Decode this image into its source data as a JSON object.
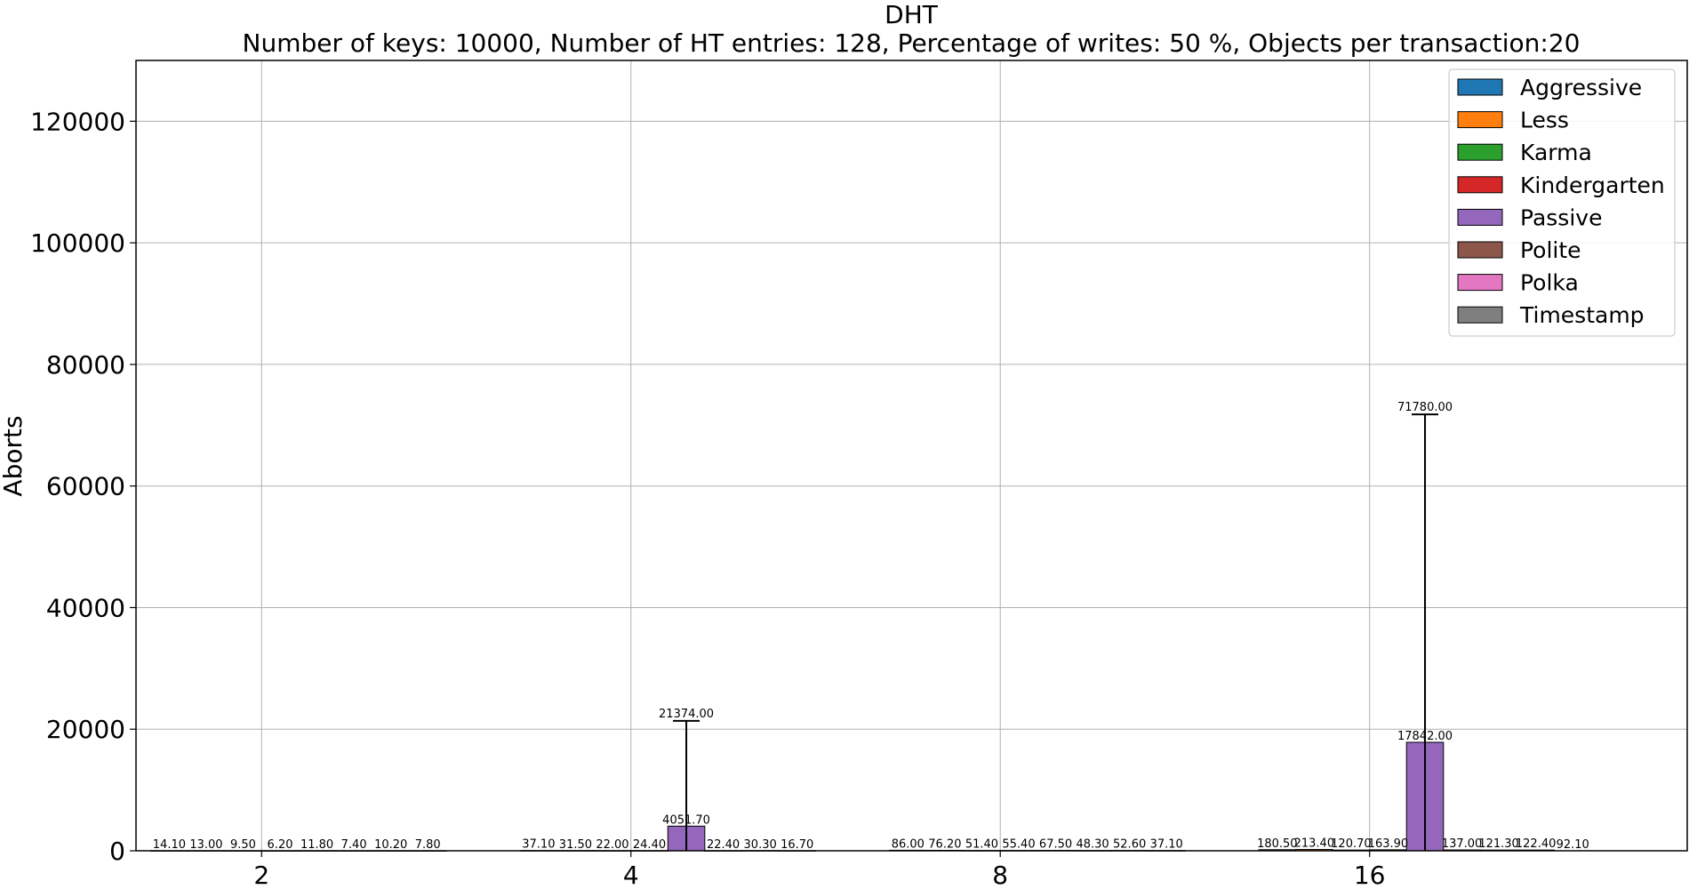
{
  "chart_data": {
    "type": "bar",
    "title": "DHT",
    "subtitle": "Number of keys: 10000, Number of HT entries: 128, Percentage of writes: 50 %, Objects per transaction:20",
    "xlabel": "",
    "ylabel": "Aborts",
    "ylim": [
      0,
      130000
    ],
    "yticks": [
      0,
      20000,
      40000,
      60000,
      80000,
      100000,
      120000
    ],
    "grid": true,
    "legend_position": "top-right",
    "categories": [
      "2",
      "4",
      "8",
      "16"
    ],
    "series": [
      {
        "name": "Aggressive",
        "color": "#1f77b4",
        "values": [
          14.1,
          37.1,
          86.0,
          180.5
        ],
        "labels": [
          "14.10",
          "37.10",
          "86.00",
          "180.50"
        ]
      },
      {
        "name": "Less",
        "color": "#ff7f0e",
        "values": [
          13.0,
          31.5,
          76.2,
          213.4
        ],
        "labels": [
          "13.00",
          "31.50",
          "76.20",
          "213.40"
        ]
      },
      {
        "name": "Karma",
        "color": "#2ca02c",
        "values": [
          9.5,
          22.0,
          51.4,
          120.7
        ],
        "labels": [
          "9.50",
          "22.00",
          "51.40",
          "120.70"
        ]
      },
      {
        "name": "Kindergarten",
        "color": "#d62728",
        "values": [
          6.2,
          24.4,
          55.4,
          163.9
        ],
        "labels": [
          "6.20",
          "24.40",
          "55.40",
          "163.90"
        ]
      },
      {
        "name": "Passive",
        "color": "#9467bd",
        "values": [
          11.8,
          4051.7,
          67.5,
          17842.0
        ],
        "labels": [
          "11.80",
          "4051.70",
          "67.50",
          "17842.00"
        ],
        "error_top": [
          null,
          21374.0,
          null,
          71780.0
        ],
        "error_top_labels": [
          null,
          "21374.00",
          null,
          "71780.00"
        ]
      },
      {
        "name": "Polite",
        "color": "#8c564b",
        "values": [
          7.4,
          22.4,
          48.3,
          137.0
        ],
        "labels": [
          "7.40",
          "22.40",
          "48.30",
          "137.00"
        ]
      },
      {
        "name": "Polka",
        "color": "#e377c2",
        "values": [
          10.2,
          30.3,
          52.6,
          121.3
        ],
        "labels": [
          "10.20",
          "30.30",
          "52.60",
          "121.30"
        ]
      },
      {
        "name": "Timestamp",
        "color": "#7f7f7f",
        "values": [
          7.8,
          16.7,
          37.1,
          122.4
        ],
        "labels": [
          "7.80",
          "16.70",
          "37.10",
          "122.40"
        ]
      }
    ],
    "extra_labels": [
      {
        "category": "16",
        "text": "92.10"
      }
    ]
  }
}
